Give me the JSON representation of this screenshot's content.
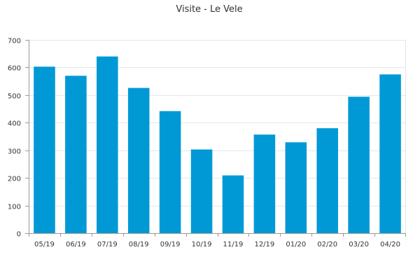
{
  "chart_data": {
    "type": "bar",
    "title": "Visite - Le Vele",
    "categories": [
      "05/19",
      "06/19",
      "07/19",
      "08/19",
      "09/19",
      "10/19",
      "11/19",
      "12/19",
      "01/20",
      "02/20",
      "03/20",
      "04/20"
    ],
    "values": [
      603,
      570,
      640,
      526,
      442,
      303,
      209,
      357,
      329,
      380,
      494,
      575
    ],
    "ylim": [
      0,
      700
    ],
    "yticks": [
      0,
      100,
      200,
      300,
      400,
      500,
      600,
      700
    ],
    "grid": true,
    "bar_color": "#0099d6"
  }
}
